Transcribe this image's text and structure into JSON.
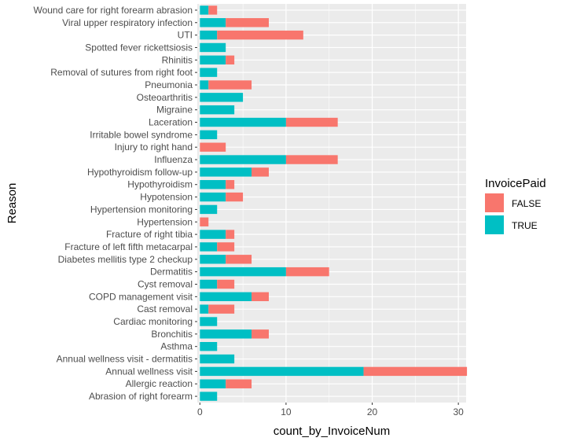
{
  "chart_data": {
    "type": "bar",
    "orientation": "horizontal",
    "stacked": true,
    "xlabel": "count_by_InvoiceNum",
    "ylabel": "Reason",
    "xlim": [
      -0.3,
      30.9
    ],
    "x_ticks": [
      0,
      10,
      20,
      30
    ],
    "grid": true,
    "legend_position": "right",
    "legend_title": "InvoicePaid",
    "categories": [
      "Abrasion of right forearm",
      "Allergic reaction",
      "Annual wellness visit",
      "Annual wellness visit - dermatitis",
      "Asthma",
      "Bronchitis",
      "Cardiac monitoring",
      "Cast removal",
      "COPD management visit",
      "Cyst removal",
      "Dermatitis",
      "Diabetes mellitis type 2 checkup",
      "Fracture of left fifth metacarpal",
      "Fracture of right tibia",
      "Hypertension",
      "Hypertension monitoring",
      "Hypotension",
      "Hypothyroidism",
      "Hypothyroidism follow-up",
      "Influenza",
      "Injury to right hand",
      "Irritable bowel syndrome",
      "Laceration",
      "Migraine",
      "Osteoarthritis",
      "Pneumonia",
      "Removal of sutures from right foot",
      "Rhinitis",
      "Spotted fever rickettsiosis",
      "UTI",
      "Viral upper respiratory infection",
      "Wound care for right forearm abrasion"
    ],
    "series": [
      {
        "name": "TRUE",
        "color": "#00BFC4",
        "values": [
          2,
          3,
          19,
          4,
          2,
          6,
          2,
          1,
          6,
          2,
          10,
          3,
          2,
          3,
          0,
          2,
          3,
          3,
          6,
          10,
          0,
          2,
          10,
          4,
          5,
          1,
          2,
          3,
          3,
          2,
          3,
          1
        ]
      },
      {
        "name": "FALSE",
        "color": "#F8766D",
        "values": [
          0,
          3,
          12,
          0,
          0,
          2,
          0,
          3,
          2,
          2,
          5,
          3,
          2,
          1,
          1,
          0,
          2,
          1,
          2,
          6,
          3,
          0,
          6,
          0,
          0,
          5,
          0,
          1,
          0,
          10,
          5,
          1
        ]
      }
    ],
    "legend_order": [
      "FALSE",
      "TRUE"
    ],
    "panel_background": "#EBEBEB",
    "grid_color": "#FFFFFF"
  }
}
